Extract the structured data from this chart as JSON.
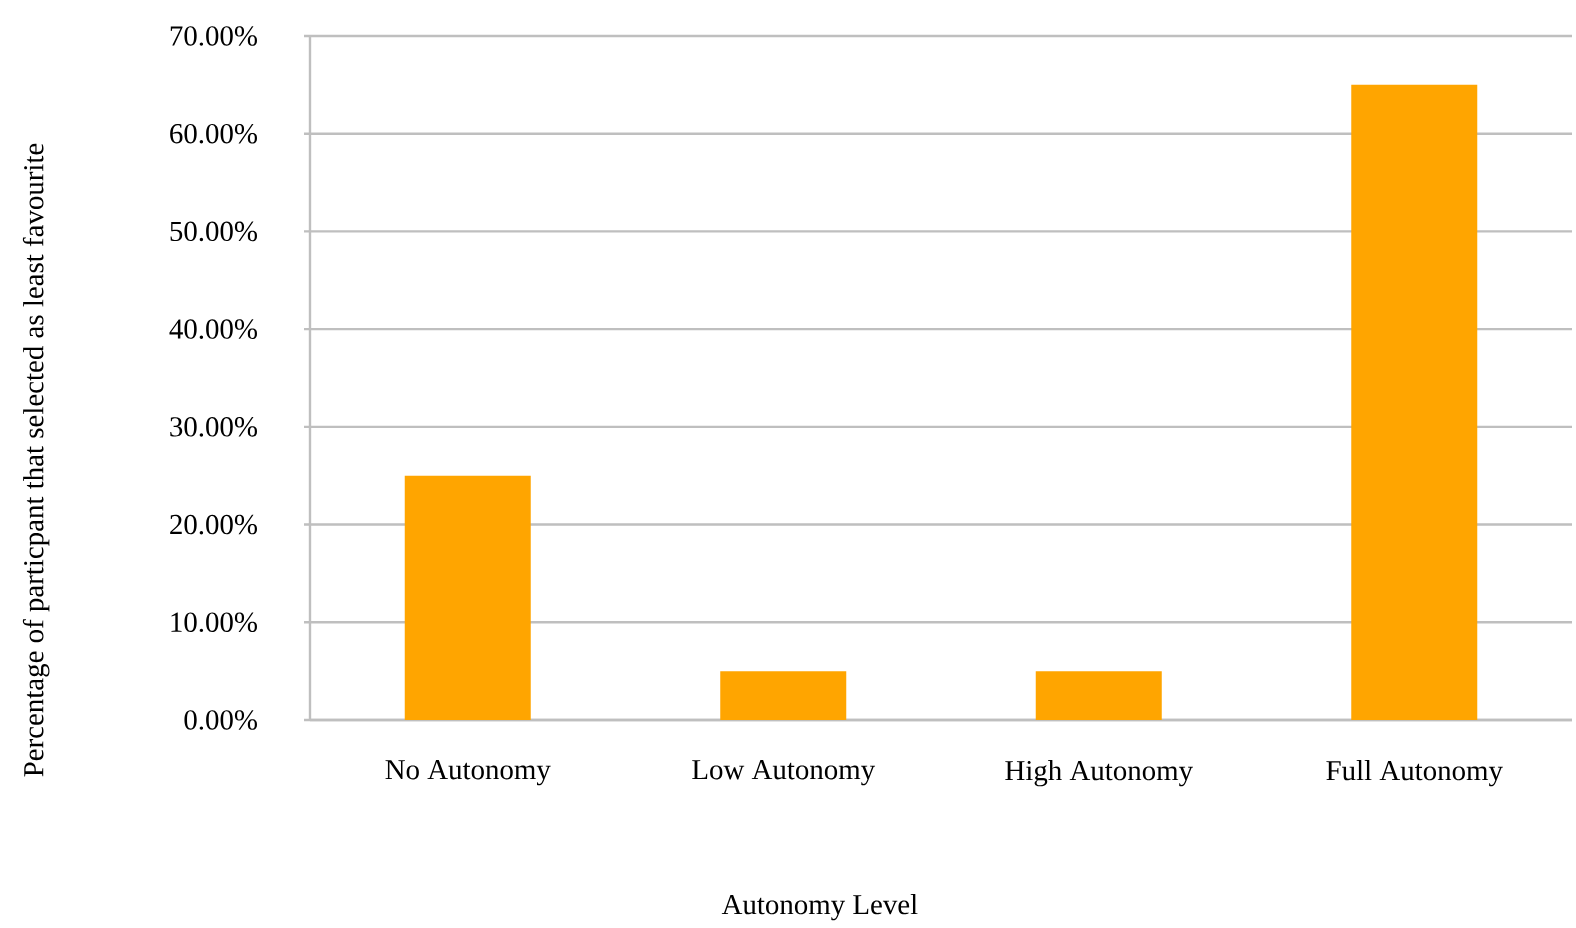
{
  "chart_data": {
    "type": "bar",
    "xlabel": "Autonomy Level",
    "ylabel": "Percentage of particpant that selected as least favourite",
    "categories": [
      "No Autonomy",
      "Low Autonomy",
      "High Autonomy",
      "Full Autonomy"
    ],
    "values": [
      25,
      5,
      5,
      65
    ],
    "color": "#ffa500",
    "ylim": [
      0,
      70
    ],
    "yticks": [
      {
        "value": 0,
        "label": "0.00%"
      },
      {
        "value": 10,
        "label": "10.00%"
      },
      {
        "value": 20,
        "label": "20.00%"
      },
      {
        "value": 30,
        "label": "30.00%"
      },
      {
        "value": 40,
        "label": "40.00%"
      },
      {
        "value": 50,
        "label": "50.00%"
      },
      {
        "value": 60,
        "label": "60.00%"
      },
      {
        "value": 70,
        "label": "70.00%"
      }
    ],
    "grid": "y"
  }
}
